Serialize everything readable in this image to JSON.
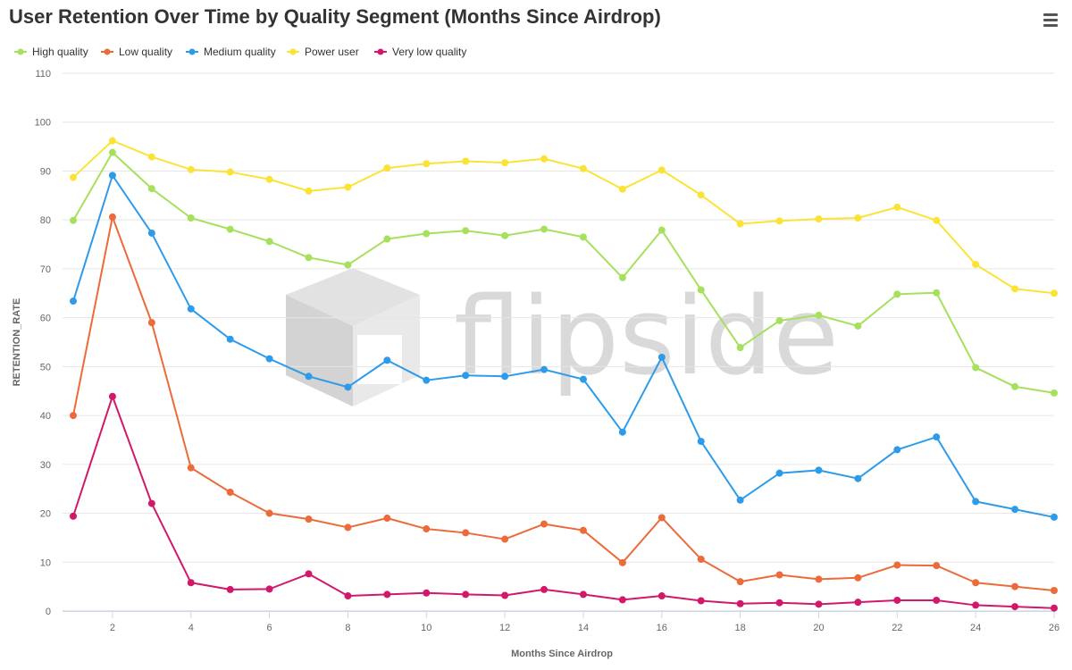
{
  "chart_data": {
    "type": "line",
    "title": "User Retention Over Time by Quality Segment (Months Since Airdrop)",
    "xlabel": "Months Since Airdrop",
    "ylabel": "RETENTION_RATE",
    "xlim": [
      1,
      26
    ],
    "ylim": [
      0,
      110
    ],
    "x_ticks": [
      2,
      4,
      6,
      8,
      10,
      12,
      14,
      16,
      18,
      20,
      22,
      24,
      26
    ],
    "y_ticks": [
      0,
      10,
      20,
      30,
      40,
      50,
      60,
      70,
      80,
      90,
      100,
      110
    ],
    "grid": true,
    "legend_position": "top-left",
    "x": [
      1,
      2,
      3,
      4,
      5,
      6,
      7,
      8,
      9,
      10,
      11,
      12,
      13,
      14,
      15,
      16,
      17,
      18,
      19,
      20,
      21,
      22,
      23,
      24,
      25,
      26
    ],
    "series": [
      {
        "name": "High quality",
        "color": "#a6e05c",
        "values": [
          79.9,
          93.8,
          86.4,
          80.4,
          78.1,
          75.6,
          72.3,
          70.8,
          76.1,
          77.2,
          77.8,
          76.8,
          78.1,
          76.5,
          68.2,
          77.9,
          65.7,
          53.9,
          59.4,
          60.5,
          58.3,
          64.8,
          65.1,
          49.8,
          45.9,
          44.6
        ]
      },
      {
        "name": "Low quality",
        "color": "#ed6a3a",
        "values": [
          40.0,
          80.6,
          59.0,
          29.3,
          24.3,
          20.0,
          18.8,
          17.1,
          19.0,
          16.8,
          16.0,
          14.7,
          17.8,
          16.5,
          9.9,
          19.1,
          10.6,
          6.0,
          7.4,
          6.5,
          6.8,
          9.4,
          9.3,
          5.8,
          5.0,
          4.2
        ]
      },
      {
        "name": "Medium quality",
        "color": "#2e9bea",
        "values": [
          63.4,
          89.1,
          77.3,
          61.8,
          55.6,
          51.6,
          48.0,
          45.8,
          51.3,
          47.2,
          48.2,
          48.0,
          49.4,
          47.4,
          36.6,
          51.9,
          34.7,
          22.7,
          28.2,
          28.8,
          27.1,
          33.0,
          35.6,
          22.4,
          20.8,
          19.2
        ]
      },
      {
        "name": "Power user",
        "color": "#fbe336",
        "values": [
          88.7,
          96.2,
          92.9,
          90.3,
          89.8,
          88.3,
          85.9,
          86.7,
          90.6,
          91.5,
          92.0,
          91.7,
          92.5,
          90.5,
          86.3,
          90.2,
          85.1,
          79.2,
          79.8,
          80.2,
          80.4,
          82.6,
          79.9,
          70.9,
          65.9,
          65.0
        ]
      },
      {
        "name": "Very low quality",
        "color": "#d1186a",
        "values": [
          19.4,
          43.9,
          22.0,
          5.8,
          4.4,
          4.5,
          7.6,
          3.1,
          3.4,
          3.7,
          3.4,
          3.2,
          4.4,
          3.4,
          2.3,
          3.1,
          2.1,
          1.5,
          1.7,
          1.4,
          1.8,
          2.2,
          2.2,
          1.2,
          0.9,
          0.6
        ]
      }
    ]
  },
  "watermark": {
    "text": "flipside"
  },
  "toolbar": {
    "menu_icon": "hamburger-menu-icon"
  }
}
